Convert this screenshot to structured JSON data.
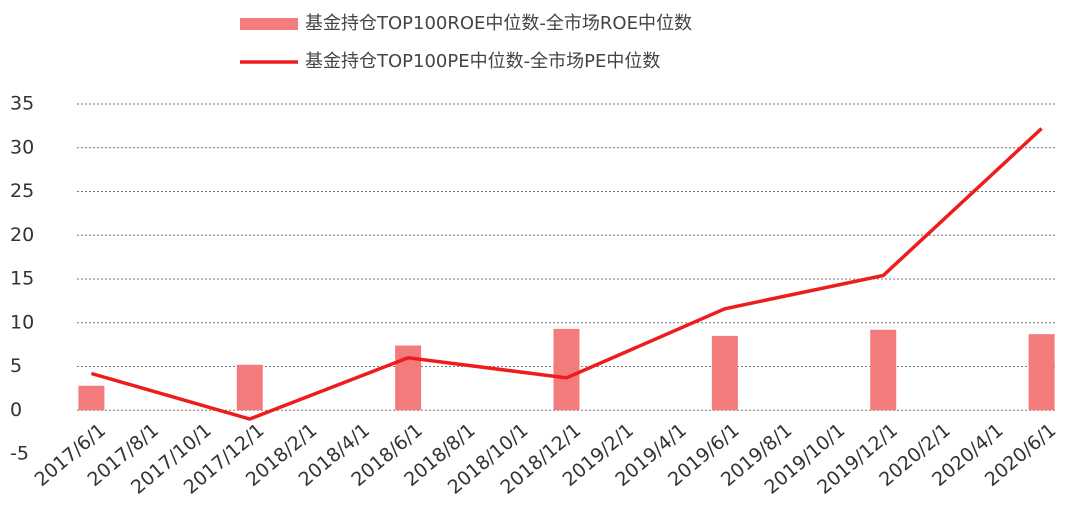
{
  "chart_data": {
    "type": "bar_line",
    "legend": [
      "基金持仓TOP100ROE中位数-全市场ROE中位数",
      "基金持仓TOP100PE中位数-全市场PE中位数"
    ],
    "categories": [
      "2017/6/1",
      "2017/8/1",
      "2017/10/1",
      "2017/12/1",
      "2018/2/1",
      "2018/4/1",
      "2018/6/1",
      "2018/8/1",
      "2018/10/1",
      "2018/12/1",
      "2019/2/1",
      "2019/4/1",
      "2019/6/1",
      "2019/8/1",
      "2019/10/1",
      "2019/12/1",
      "2020/2/1",
      "2020/4/1",
      "2020/6/1"
    ],
    "x": [
      "2017/6/1",
      "2017/12/1",
      "2018/6/1",
      "2018/12/1",
      "2019/6/1",
      "2019/12/1",
      "2020/6/1"
    ],
    "series": [
      {
        "name": "基金持仓TOP100ROE中位数-全市场ROE中位数",
        "type": "bar",
        "color": "#f47b7b",
        "values": [
          2.8,
          5.2,
          7.4,
          9.3,
          8.5,
          9.2,
          8.7
        ]
      },
      {
        "name": "基金持仓TOP100PE中位数-全市场PE中位数",
        "type": "line",
        "color": "#ee1d1d",
        "values": [
          4.2,
          -1.0,
          6.0,
          3.7,
          11.6,
          15.4,
          32.2
        ]
      }
    ],
    "ylim": [
      -5,
      35
    ],
    "yticks": [
      -5,
      0,
      5,
      10,
      15,
      20,
      25,
      30,
      35
    ],
    "grid": true
  }
}
